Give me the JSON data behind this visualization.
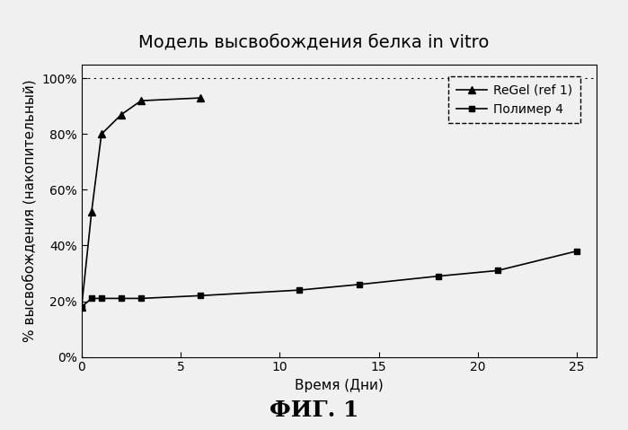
{
  "title": "Модель высвобождения белка in vitro",
  "xlabel": "Время (Дни)",
  "ylabel": "% высвобождения (накопительный)",
  "figcaption": "ФИГ. 1",
  "regel_x": [
    0,
    0.5,
    1,
    2,
    3,
    6
  ],
  "regel_y": [
    0.18,
    0.52,
    0.8,
    0.87,
    0.92,
    0.93
  ],
  "polymer_x": [
    0,
    0.5,
    1,
    2,
    3,
    6,
    11,
    14,
    18,
    21,
    25
  ],
  "polymer_y": [
    0.18,
    0.21,
    0.21,
    0.21,
    0.21,
    0.22,
    0.24,
    0.26,
    0.29,
    0.31,
    0.38
  ],
  "legend_regel": "ReGel (ref 1)",
  "legend_polymer": "Полимер 4",
  "xlim": [
    0,
    26
  ],
  "ylim": [
    0,
    1.05
  ],
  "yticks": [
    0.0,
    0.2,
    0.4,
    0.6,
    0.8,
    1.0
  ],
  "ytick_labels": [
    "0%",
    "20%",
    "40%",
    "60%",
    "80%",
    "100%"
  ],
  "xticks": [
    0,
    5,
    10,
    15,
    20,
    25
  ],
  "xtick_labels": [
    "0",
    "5",
    "10",
    "15",
    "20",
    "25"
  ],
  "bg_color": "#f0f0f0",
  "line_color": "#000000",
  "title_fontsize": 14,
  "axis_fontsize": 11,
  "tick_fontsize": 10,
  "legend_fontsize": 10,
  "caption_fontsize": 18
}
